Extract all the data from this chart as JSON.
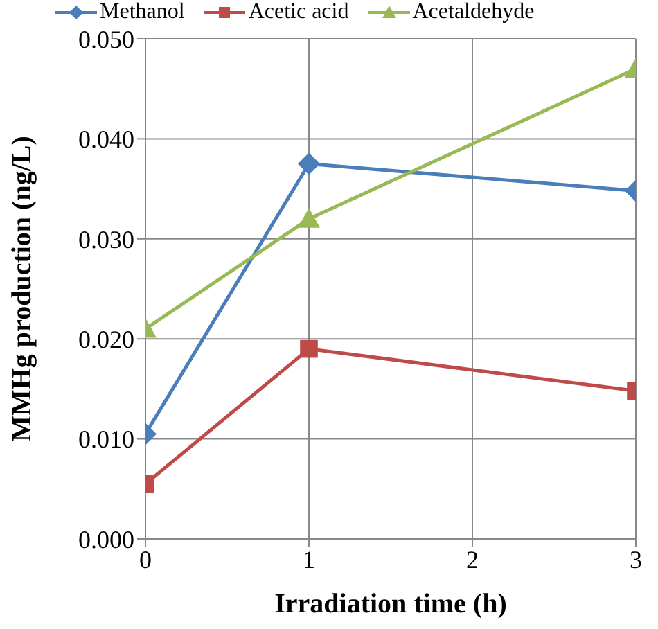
{
  "chart_data": {
    "type": "line",
    "xlabel": "Irradiation time (h)",
    "ylabel": "MMHg production (ng/L)",
    "x": [
      0,
      1,
      3
    ],
    "series": [
      {
        "name": "Methanol",
        "color": "#4a7ebb",
        "marker": "diamond",
        "values": [
          0.0105,
          0.0375,
          0.0348
        ]
      },
      {
        "name": "Acetic acid",
        "color": "#be4b48",
        "marker": "square",
        "values": [
          0.0055,
          0.019,
          0.0148
        ]
      },
      {
        "name": "Acetaldehyde",
        "color": "#98b954",
        "marker": "triangle",
        "values": [
          0.021,
          0.032,
          0.047
        ]
      }
    ],
    "xlim": [
      0,
      3
    ],
    "xticks": [
      0,
      1,
      2,
      3
    ],
    "ylim": [
      0,
      0.05
    ],
    "yticks": [
      {
        "value": 0,
        "label": "0.000"
      },
      {
        "value": 0.01,
        "label": "0.010"
      },
      {
        "value": 0.02,
        "label": "0.020"
      },
      {
        "value": 0.03,
        "label": "0.030"
      },
      {
        "value": 0.04,
        "label": "0.040"
      },
      {
        "value": 0.05,
        "label": "0.050"
      }
    ],
    "grid": true,
    "legend": "top",
    "line_style": "solid"
  }
}
